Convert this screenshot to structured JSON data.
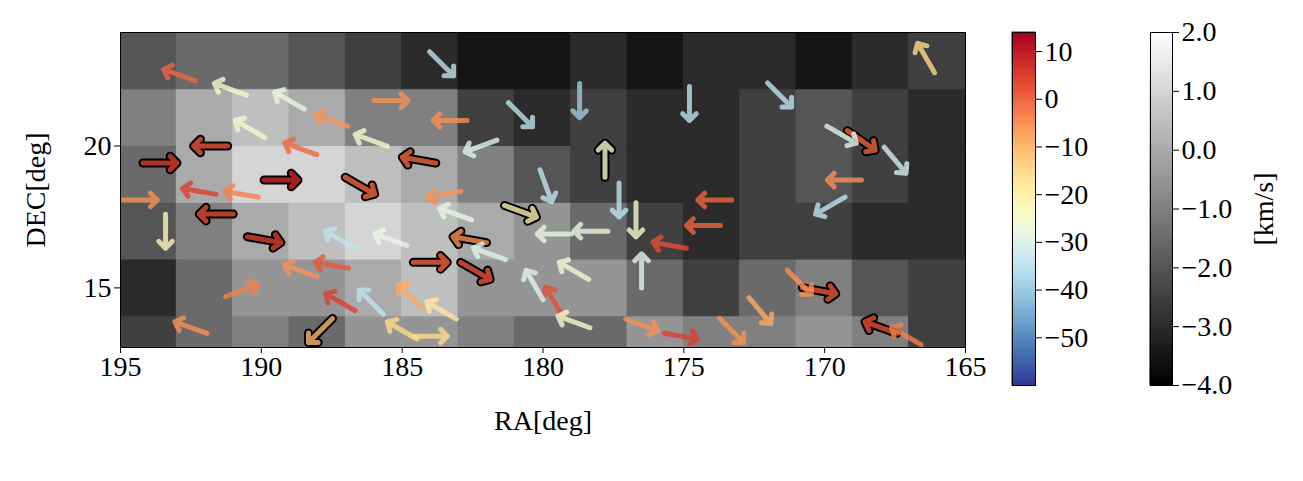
{
  "chart_data": {
    "type": "vector",
    "x_label": "RA[deg]",
    "y_label": "DEC[deg]",
    "xlim": [
      195,
      165
    ],
    "xticks": [
      195,
      190,
      185,
      180,
      175,
      170,
      165
    ],
    "ylim": [
      12.9,
      24.0
    ],
    "yticks": [
      15,
      20
    ],
    "arrow_colorbar": {
      "lim": [
        -60,
        14
      ],
      "ticks": [
        10,
        0,
        -10,
        -20,
        -30,
        -40,
        -50
      ]
    },
    "background": {
      "ra_edges": [
        195,
        193,
        191,
        189,
        187,
        185,
        183,
        181,
        179,
        177,
        175,
        173,
        171,
        169,
        167,
        165
      ],
      "dec_edges": [
        12,
        14,
        16,
        18,
        20,
        22,
        24
      ],
      "values": [
        [
          -2.5,
          -1.5,
          -1,
          -1.5,
          -0.5,
          -0.5,
          -1,
          -1.5,
          -1.5,
          -0.5,
          -1,
          -1,
          -0.5,
          -1,
          -2.5
        ],
        [
          -3,
          -1.5,
          -0.5,
          -0.5,
          0,
          0.5,
          -0.5,
          -0.5,
          -0.5,
          -1.5,
          -2.5,
          -1.5,
          -1,
          -2,
          -2.5
        ],
        [
          -2,
          -1,
          0,
          0.5,
          1,
          0.5,
          0,
          -0.5,
          -1.5,
          -2.5,
          -3,
          -2.5,
          -2.5,
          -3,
          -3
        ],
        [
          -1.5,
          0,
          1,
          1,
          0.5,
          0,
          -1,
          -2,
          -2.5,
          -3,
          -3,
          -2.5,
          -2,
          -2.5,
          -3
        ],
        [
          -1,
          0,
          0.5,
          0,
          -1,
          -1,
          -2.5,
          -3,
          -2.5,
          -3,
          -3,
          -2.5,
          -2,
          -2.5,
          -3
        ],
        [
          -2,
          -1.5,
          -1.5,
          -2,
          -2.5,
          -3,
          -3.5,
          -3.5,
          -3,
          -3.5,
          -3,
          -3,
          -3.5,
          -3,
          -2.5
        ]
      ],
      "colorbar": {
        "lim": [
          -4,
          2
        ],
        "ticks": [
          -4,
          -3,
          -2,
          -1,
          0,
          1,
          2
        ],
        "label": "[km/s]"
      }
    },
    "arrows": [
      {
        "ra": 166.4,
        "dec": 23.1,
        "angle": -30,
        "value": -15,
        "outlined": false
      },
      {
        "ra": 183.6,
        "dec": 22.9,
        "angle": 135,
        "value": -35,
        "outlined": false
      },
      {
        "ra": 185.4,
        "dec": 21.6,
        "angle": 90,
        "value": -5,
        "outlined": false
      },
      {
        "ra": 192.9,
        "dec": 22.5,
        "angle": -70,
        "value": 0,
        "outlined": false
      },
      {
        "ra": 191.1,
        "dec": 22.0,
        "angle": -70,
        "value": -25,
        "outlined": false
      },
      {
        "ra": 189.0,
        "dec": 21.6,
        "angle": -60,
        "value": -28,
        "outlined": false
      },
      {
        "ra": 187.5,
        "dec": 20.9,
        "angle": -70,
        "value": -5,
        "outlined": false
      },
      {
        "ra": 191.8,
        "dec": 20.0,
        "angle": -90,
        "value": 2,
        "outlined": true
      },
      {
        "ra": 193.6,
        "dec": 19.4,
        "angle": 90,
        "value": 5,
        "outlined": true
      },
      {
        "ra": 189.3,
        "dec": 18.8,
        "angle": 90,
        "value": 8,
        "outlined": true
      },
      {
        "ra": 191.6,
        "dec": 17.6,
        "angle": -90,
        "value": 3,
        "outlined": true
      },
      {
        "ra": 189.9,
        "dec": 16.7,
        "angle": 100,
        "value": 5,
        "outlined": true
      },
      {
        "ra": 184.4,
        "dec": 19.5,
        "angle": -80,
        "value": 0,
        "outlined": true
      },
      {
        "ra": 186.5,
        "dec": 18.6,
        "angle": 120,
        "value": 0,
        "outlined": true
      },
      {
        "ra": 180.8,
        "dec": 17.7,
        "angle": 110,
        "value": -20,
        "outlined": true
      },
      {
        "ra": 184.0,
        "dec": 15.9,
        "angle": 90,
        "value": 0,
        "outlined": true
      },
      {
        "ra": 182.4,
        "dec": 15.6,
        "angle": 120,
        "value": 2,
        "outlined": true
      },
      {
        "ra": 182.6,
        "dec": 16.7,
        "angle": -80,
        "value": -5,
        "outlined": true
      },
      {
        "ra": 177.8,
        "dec": 19.5,
        "angle": 0,
        "value": -25,
        "outlined": true
      },
      {
        "ra": 168.7,
        "dec": 20.2,
        "angle": 125,
        "value": 0,
        "outlined": true
      },
      {
        "ra": 168.0,
        "dec": 13.6,
        "angle": -70,
        "value": 3,
        "outlined": true
      },
      {
        "ra": 170.2,
        "dec": 14.9,
        "angle": 100,
        "value": 2,
        "outlined": true
      },
      {
        "ra": 187.9,
        "dec": 13.5,
        "angle": 225,
        "value": -10,
        "outlined": true
      },
      {
        "ra": 180.8,
        "dec": 21.1,
        "angle": 135,
        "value": -35,
        "outlined": false
      },
      {
        "ra": 178.7,
        "dec": 21.6,
        "angle": 180,
        "value": -40,
        "outlined": false
      },
      {
        "ra": 174.8,
        "dec": 21.5,
        "angle": 180,
        "value": -35,
        "outlined": false
      },
      {
        "ra": 171.6,
        "dec": 21.8,
        "angle": 135,
        "value": -35,
        "outlined": false
      },
      {
        "ra": 169.4,
        "dec": 20.4,
        "angle": 120,
        "value": -30,
        "outlined": false
      },
      {
        "ra": 167.5,
        "dec": 19.5,
        "angle": 140,
        "value": -32,
        "outlined": false
      },
      {
        "ra": 179.9,
        "dec": 18.6,
        "angle": 160,
        "value": -35,
        "outlined": false
      },
      {
        "ra": 177.3,
        "dec": 18.1,
        "angle": 180,
        "value": -35,
        "outlined": false
      },
      {
        "ra": 176.7,
        "dec": 17.4,
        "angle": 180,
        "value": -25,
        "outlined": false
      },
      {
        "ra": 176.5,
        "dec": 15.6,
        "angle": 0,
        "value": -30,
        "outlined": false
      },
      {
        "ra": 169.8,
        "dec": 17.9,
        "angle": -120,
        "value": -35,
        "outlined": false
      },
      {
        "ra": 169.3,
        "dec": 18.8,
        "angle": -90,
        "value": -5,
        "outlined": false
      },
      {
        "ra": 173.9,
        "dec": 18.1,
        "angle": -90,
        "value": 0,
        "outlined": false
      },
      {
        "ra": 174.3,
        "dec": 17.2,
        "angle": -90,
        "value": 0,
        "outlined": false
      },
      {
        "ra": 175.5,
        "dec": 16.5,
        "angle": -80,
        "value": 3,
        "outlined": false
      },
      {
        "ra": 178.3,
        "dec": 17.0,
        "angle": -90,
        "value": -28,
        "outlined": false
      },
      {
        "ra": 181.9,
        "dec": 16.2,
        "angle": -70,
        "value": -30,
        "outlined": false
      },
      {
        "ra": 170.9,
        "dec": 15.2,
        "angle": 135,
        "value": -5,
        "outlined": false
      },
      {
        "ra": 172.3,
        "dec": 14.2,
        "angle": 140,
        "value": -8,
        "outlined": false
      },
      {
        "ra": 173.3,
        "dec": 13.5,
        "angle": 135,
        "value": -5,
        "outlined": false
      },
      {
        "ra": 175.1,
        "dec": 13.3,
        "angle": 100,
        "value": 5,
        "outlined": false
      },
      {
        "ra": 176.5,
        "dec": 13.7,
        "angle": 110,
        "value": -5,
        "outlined": false
      },
      {
        "ra": 179.6,
        "dec": 14.5,
        "angle": -30,
        "value": 3,
        "outlined": false
      },
      {
        "ra": 178.9,
        "dec": 15.6,
        "angle": -60,
        "value": -25,
        "outlined": false
      },
      {
        "ra": 180.3,
        "dec": 15.1,
        "angle": -30,
        "value": -30,
        "outlined": false
      },
      {
        "ra": 178.9,
        "dec": 13.8,
        "angle": -70,
        "value": -25,
        "outlined": false
      },
      {
        "ra": 183.6,
        "dec": 14.2,
        "angle": -60,
        "value": -18,
        "outlined": false
      },
      {
        "ra": 185.0,
        "dec": 13.5,
        "angle": -60,
        "value": -15,
        "outlined": false
      },
      {
        "ra": 184.0,
        "dec": 13.3,
        "angle": 90,
        "value": -15,
        "outlined": false
      },
      {
        "ra": 186.1,
        "dec": 14.5,
        "angle": -45,
        "value": -35,
        "outlined": false
      },
      {
        "ra": 187.2,
        "dec": 14.5,
        "angle": -60,
        "value": 5,
        "outlined": false
      },
      {
        "ra": 192.5,
        "dec": 13.6,
        "angle": -70,
        "value": -5,
        "outlined": false
      },
      {
        "ra": 193.4,
        "dec": 17.0,
        "angle": 180,
        "value": -22,
        "outlined": false
      },
      {
        "ra": 194.3,
        "dec": 18.1,
        "angle": 90,
        "value": -5,
        "outlined": false
      },
      {
        "ra": 190.7,
        "dec": 14.9,
        "angle": 70,
        "value": -3,
        "outlined": false
      },
      {
        "ra": 184.7,
        "dec": 14.7,
        "angle": -45,
        "value": -8,
        "outlined": false
      },
      {
        "ra": 187.2,
        "dec": 16.7,
        "angle": -60,
        "value": -35,
        "outlined": false
      },
      {
        "ra": 185.4,
        "dec": 16.7,
        "angle": -70,
        "value": -28,
        "outlined": false
      },
      {
        "ra": 188.6,
        "dec": 15.6,
        "angle": -70,
        "value": -5,
        "outlined": false
      },
      {
        "ra": 187.5,
        "dec": 15.8,
        "angle": -80,
        "value": 2,
        "outlined": false
      },
      {
        "ra": 186.1,
        "dec": 20.2,
        "angle": -70,
        "value": -25,
        "outlined": false
      },
      {
        "ra": 183.3,
        "dec": 20.9,
        "angle": -90,
        "value": -5,
        "outlined": false
      },
      {
        "ra": 182.2,
        "dec": 20.0,
        "angle": -110,
        "value": -30,
        "outlined": false
      },
      {
        "ra": 183.5,
        "dec": 18.3,
        "angle": -100,
        "value": -5,
        "outlined": false
      },
      {
        "ra": 183.1,
        "dec": 17.6,
        "angle": -70,
        "value": -28,
        "outlined": false
      },
      {
        "ra": 179.6,
        "dec": 16.9,
        "angle": -90,
        "value": -28,
        "outlined": false
      },
      {
        "ra": 190.4,
        "dec": 20.6,
        "angle": -60,
        "value": -25,
        "outlined": false
      },
      {
        "ra": 188.6,
        "dec": 19.9,
        "angle": -70,
        "value": 0,
        "outlined": false
      },
      {
        "ra": 192.2,
        "dec": 18.4,
        "angle": -80,
        "value": 5,
        "outlined": false
      },
      {
        "ra": 190.7,
        "dec": 18.3,
        "angle": -80,
        "value": -3,
        "outlined": false
      },
      {
        "ra": 167.1,
        "dec": 13.3,
        "angle": -60,
        "value": -3,
        "outlined": false
      }
    ]
  }
}
